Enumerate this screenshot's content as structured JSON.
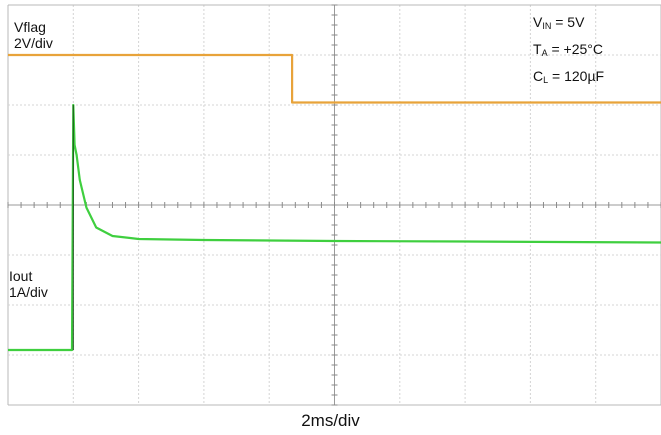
{
  "chart_data": {
    "type": "line",
    "title": "",
    "grid": true,
    "time_base": "2ms/div",
    "x_unit": "div",
    "x_range": [
      0,
      10
    ],
    "y_range_div": [
      0,
      8
    ],
    "series": [
      {
        "name": "Vflag",
        "scale": "2V/div",
        "color": "#e8a33a",
        "x": [
          0,
          4.35,
          4.35,
          10
        ],
        "y_div": [
          7.0,
          7.0,
          6.05,
          6.05
        ]
      },
      {
        "name": "Iout",
        "scale": "1A/div",
        "color": "#3fcf3f",
        "x": [
          0,
          0.98,
          1.0,
          1.02,
          1.05,
          1.1,
          1.2,
          1.35,
          1.6,
          2.0,
          3.0,
          5.0,
          7.0,
          10
        ],
        "y_div": [
          1.1,
          1.1,
          6.0,
          5.2,
          5.0,
          4.5,
          3.95,
          3.55,
          3.38,
          3.32,
          3.3,
          3.28,
          3.27,
          3.25
        ]
      }
    ],
    "conditions": {
      "vin_label": "V",
      "vin_sub": "IN",
      "vin_value": " = 5V",
      "ta_label": "T",
      "ta_sub": "A",
      "ta_value": " = +25°C",
      "cl_label": "C",
      "cl_sub": "L",
      "cl_value": " = 120µF"
    }
  }
}
